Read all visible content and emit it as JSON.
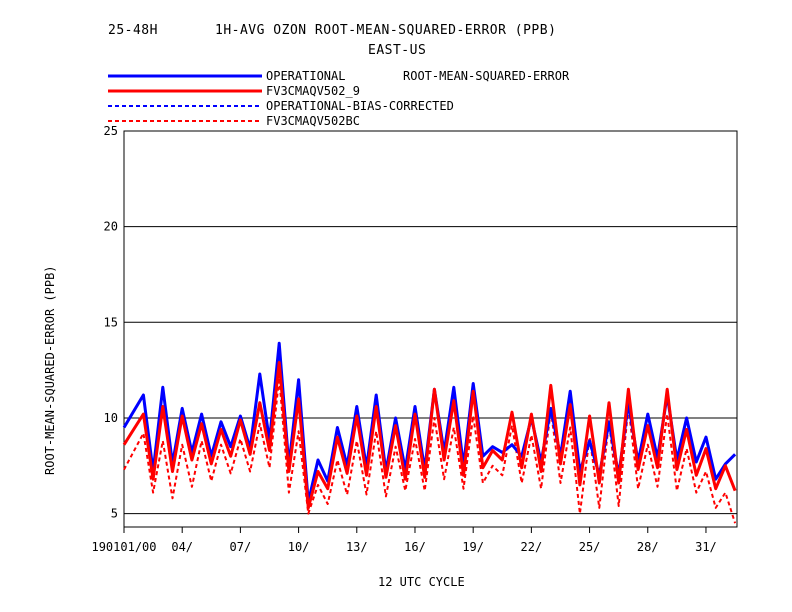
{
  "chart_data": {
    "type": "line",
    "title_left": "25-48H",
    "title": "1H-AVG OZON ROOT-MEAN-SQUARED-ERROR (PPB)",
    "subtitle": "EAST-US",
    "legend_note": "ROOT-MEAN-SQUARED-ERROR",
    "xlabel": "12 UTC CYCLE",
    "ylabel": "ROOT-MEAN-SQUARED-ERROR (PPB)",
    "ylim": [
      4.3,
      25
    ],
    "y_ticks": [
      "5",
      "10",
      "15",
      "20",
      "25"
    ],
    "x_ticks": [
      "190101/00",
      "04/",
      "07/",
      "10/",
      "13/",
      "16/",
      "19/",
      "22/",
      "25/",
      "28/",
      "31/"
    ],
    "grid": "horizontal",
    "legend_placement": "top-left",
    "series": [
      {
        "name": "OPERATIONAL",
        "color": "#0000ff",
        "style": "solid",
        "x": [
          0,
          1,
          1.5,
          2,
          2.5,
          3,
          3.5,
          4,
          4.5,
          5,
          5.5,
          6,
          6.5,
          7,
          7.5,
          8,
          8.5,
          9,
          9.5,
          10,
          10.5,
          11,
          11.5,
          12,
          12.5,
          13,
          13.5,
          14,
          14.5,
          15,
          15.5,
          16,
          16.5,
          17,
          17.5,
          18,
          18.5,
          19,
          19.5,
          20,
          20.5,
          21,
          21.5,
          22,
          22.5,
          23,
          23.5,
          24,
          24.5,
          25,
          25.5,
          26,
          26.5,
          27,
          27.5,
          28,
          28.5,
          29,
          29.5,
          30,
          30.5,
          31,
          31.5
        ],
        "values": [
          9.5,
          11.2,
          7.2,
          11.6,
          7.6,
          10.5,
          8.2,
          10.2,
          8.0,
          9.8,
          8.5,
          10.1,
          8.4,
          12.3,
          8.8,
          13.9,
          7.5,
          12.0,
          5.6,
          7.8,
          6.7,
          9.5,
          7.5,
          10.6,
          7.4,
          11.2,
          7.2,
          10.0,
          7.3,
          10.6,
          7.3,
          11.5,
          8.2,
          11.6,
          7.5,
          11.8,
          8.0,
          8.5,
          8.2,
          8.6,
          8.0,
          10.0,
          7.7,
          10.5,
          8.0,
          11.4,
          7.2,
          8.8,
          7.0,
          9.8,
          7.0,
          10.8,
          7.7,
          10.2,
          7.9,
          11.2,
          7.8,
          10.0,
          7.7,
          9.0,
          6.8,
          7.6,
          8.1
        ]
      },
      {
        "name": "FV3CMAQV502_9",
        "color": "#ff0000",
        "style": "solid",
        "x": [
          0,
          1,
          1.5,
          2,
          2.5,
          3,
          3.5,
          4,
          4.5,
          5,
          5.5,
          6,
          6.5,
          7,
          7.5,
          8,
          8.5,
          9,
          9.5,
          10,
          10.5,
          11,
          11.5,
          12,
          12.5,
          13,
          13.5,
          14,
          14.5,
          15,
          15.5,
          16,
          16.5,
          17,
          17.5,
          18,
          18.5,
          19,
          19.5,
          20,
          20.5,
          21,
          21.5,
          22,
          22.5,
          23,
          23.5,
          24,
          24.5,
          25,
          25.5,
          26,
          26.5,
          27,
          27.5,
          28,
          28.5,
          29,
          29.5,
          30,
          30.5,
          31,
          31.5
        ],
        "values": [
          8.6,
          10.2,
          6.8,
          10.6,
          7.2,
          10.1,
          7.8,
          9.7,
          7.6,
          9.4,
          8.0,
          9.9,
          8.1,
          10.8,
          8.3,
          12.9,
          7.2,
          11.0,
          5.3,
          7.2,
          6.3,
          9.0,
          7.1,
          10.1,
          7.0,
          10.6,
          6.9,
          9.6,
          6.8,
          10.2,
          6.9,
          11.5,
          7.8,
          10.9,
          7.0,
          11.4,
          7.4,
          8.3,
          7.8,
          10.3,
          7.4,
          10.2,
          7.2,
          11.7,
          7.6,
          10.7,
          6.5,
          10.1,
          6.6,
          10.8,
          6.6,
          11.5,
          7.3,
          9.6,
          7.4,
          11.5,
          7.3,
          9.4,
          7.0,
          8.4,
          6.3,
          7.5,
          6.2
        ]
      },
      {
        "name": "OPERATIONAL-BIAS-CORRECTED",
        "color": "#0000ff",
        "style": "dashed",
        "x": [],
        "values": []
      },
      {
        "name": "FV3CMAQV502BC",
        "color": "#ff0000",
        "style": "dashed",
        "x": [
          0,
          1,
          1.5,
          2,
          2.5,
          3,
          3.5,
          4,
          4.5,
          5,
          5.5,
          6,
          6.5,
          7,
          7.5,
          8,
          8.5,
          9,
          9.5,
          10,
          10.5,
          11,
          11.5,
          12,
          12.5,
          13,
          13.5,
          14,
          14.5,
          15,
          15.5,
          16,
          16.5,
          17,
          17.5,
          18,
          18.5,
          19,
          19.5,
          20,
          20.5,
          21,
          21.5,
          22,
          22.5,
          23,
          23.5,
          24,
          24.5,
          25,
          25.5,
          26,
          26.5,
          27,
          27.5,
          28,
          28.5,
          29,
          29.5,
          30,
          30.5,
          31,
          31.5
        ],
        "values": [
          7.3,
          9.2,
          6.1,
          8.8,
          5.8,
          8.6,
          6.4,
          8.8,
          6.7,
          8.6,
          7.1,
          8.9,
          7.2,
          9.7,
          7.4,
          12.1,
          6.1,
          9.3,
          5.0,
          6.5,
          5.5,
          7.8,
          6.0,
          8.8,
          6.0,
          9.3,
          5.9,
          8.5,
          6.2,
          8.9,
          6.2,
          10.0,
          6.8,
          9.5,
          6.3,
          10.1,
          6.6,
          7.5,
          7.0,
          9.6,
          6.6,
          9.1,
          6.3,
          10.4,
          6.6,
          9.5,
          5.0,
          9.0,
          5.3,
          9.8,
          5.4,
          10.6,
          6.3,
          8.6,
          6.4,
          10.2,
          6.2,
          8.4,
          6.1,
          7.2,
          5.3,
          6.1,
          4.5
        ]
      }
    ]
  }
}
